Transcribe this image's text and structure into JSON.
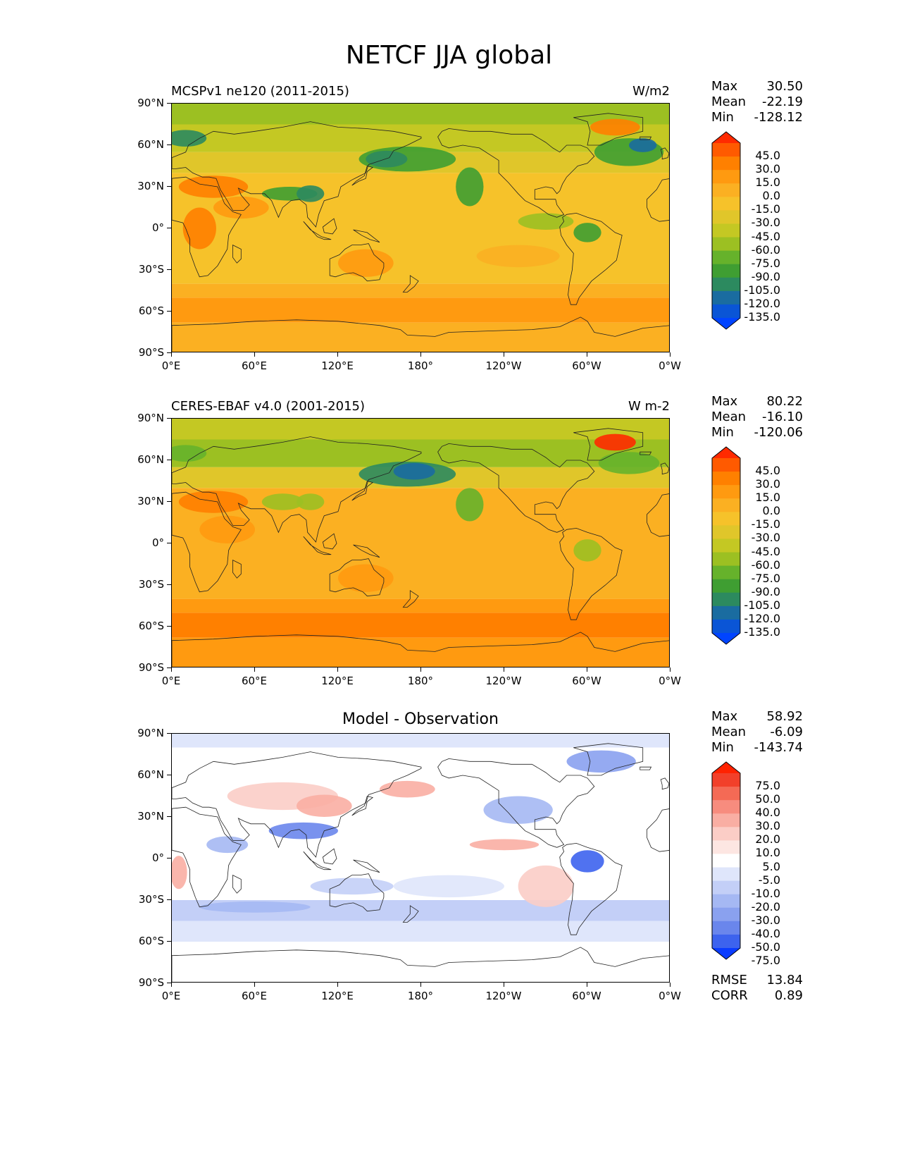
{
  "title": "NETCF JJA global",
  "lat_ticks": [
    "90°N",
    "60°N",
    "30°N",
    "0°",
    "30°S",
    "60°S",
    "90°S"
  ],
  "lon_ticks": [
    "0°E",
    "60°E",
    "120°E",
    "180°",
    "120°W",
    "60°W",
    "0°W"
  ],
  "panels": [
    {
      "left_title": "MCSPv1 ne120 (2011-2015)",
      "right_title": "W/m2",
      "center_title": "",
      "stats": [
        {
          "label": "Max",
          "value": "30.50"
        },
        {
          "label": "Mean",
          "value": "-22.19"
        },
        {
          "label": "Min",
          "value": "-128.12"
        }
      ],
      "colorbar_labels": [
        "45.0",
        "30.0",
        "15.0",
        "0.0",
        "-15.0",
        "-30.0",
        "-45.0",
        "-60.0",
        "-75.0",
        "-90.0",
        "-105.0",
        "-120.0",
        "-135.0"
      ],
      "colorbar_colors": [
        "#ff2a00",
        "#ff5a00",
        "#ff8000",
        "#ff9a10",
        "#fbb022",
        "#f6c22a",
        "#e0c62a",
        "#c4c823",
        "#9cc022",
        "#66b22b",
        "#3f9e32",
        "#2c8a5f",
        "#1a6ca0",
        "#0a55d6",
        "#0044ff"
      ]
    },
    {
      "left_title": "CERES-EBAF v4.0 (2001-2015)",
      "right_title": "W m-2",
      "center_title": "",
      "stats": [
        {
          "label": "Max",
          "value": "80.22"
        },
        {
          "label": "Mean",
          "value": "-16.10"
        },
        {
          "label": "Min",
          "value": "-120.06"
        }
      ],
      "colorbar_labels": [
        "45.0",
        "30.0",
        "15.0",
        "0.0",
        "-15.0",
        "-30.0",
        "-45.0",
        "-60.0",
        "-75.0",
        "-90.0",
        "-105.0",
        "-120.0",
        "-135.0"
      ],
      "colorbar_colors": [
        "#ff2a00",
        "#ff5a00",
        "#ff8000",
        "#ff9a10",
        "#fbb022",
        "#f6c22a",
        "#e0c62a",
        "#c4c823",
        "#9cc022",
        "#66b22b",
        "#3f9e32",
        "#2c8a5f",
        "#1a6ca0",
        "#0a55d6",
        "#0044ff"
      ]
    },
    {
      "left_title": "",
      "right_title": "",
      "center_title": "Model - Observation",
      "stats": [
        {
          "label": "Max",
          "value": "58.92"
        },
        {
          "label": "Mean",
          "value": "-6.09"
        },
        {
          "label": "Min",
          "value": "-143.74"
        }
      ],
      "extra_stats": [
        {
          "label": "RMSE",
          "value": "13.84"
        },
        {
          "label": "CORR",
          "value": "0.89"
        }
      ],
      "colorbar_labels": [
        "75.0",
        "50.0",
        "40.0",
        "30.0",
        "20.0",
        "10.0",
        "5.0",
        "-5.0",
        "-10.0",
        "-20.0",
        "-30.0",
        "-40.0",
        "-50.0",
        "-75.0"
      ],
      "colorbar_colors": [
        "#ff2200",
        "#f2402a",
        "#f46a55",
        "#f78c7e",
        "#f9aea3",
        "#fbcdc6",
        "#fde6e2",
        "#ffffff",
        "#dfe6fb",
        "#c3cff7",
        "#a5b8f3",
        "#8aa1ef",
        "#6a86ec",
        "#3d63ee",
        "#0a3cff"
      ]
    }
  ]
}
